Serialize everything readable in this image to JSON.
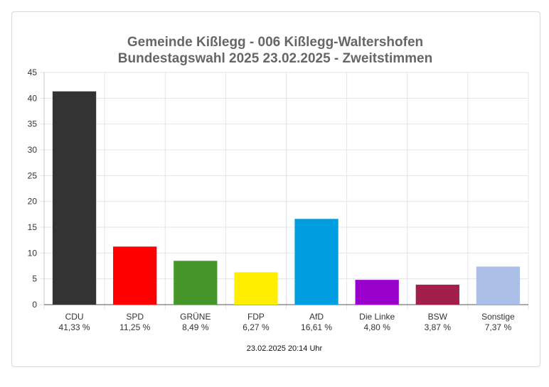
{
  "chart_data": {
    "type": "bar",
    "title": "Gemeinde Kißlegg - 006  Kißlegg-Waltershofen",
    "subtitle": "Bundestagswahl 2025 23.02.2025  - Zweitstimmen",
    "categories": [
      "CDU",
      "SPD",
      "GRÜNE",
      "FDP",
      "AfD",
      "Die Linke",
      "BSW",
      "Sonstige"
    ],
    "value_labels": [
      "41,33 %",
      "11,25 %",
      "8,49 %",
      "6,27 %",
      "16,61 %",
      "4,80 %",
      "3,87 %",
      "7,37 %"
    ],
    "values": [
      41.33,
      11.25,
      8.49,
      6.27,
      16.61,
      4.8,
      3.87,
      7.37
    ],
    "colors": [
      "#333333",
      "#ff0000",
      "#46962b",
      "#ffee00",
      "#009ee0",
      "#9900cc",
      "#a21e4b",
      "#aabee6"
    ],
    "ylim": [
      0,
      45
    ],
    "yticks": [
      0,
      5,
      10,
      15,
      20,
      25,
      30,
      35,
      40,
      45
    ],
    "grid": true,
    "footer": "23.02.2025 20:14 Uhr"
  }
}
